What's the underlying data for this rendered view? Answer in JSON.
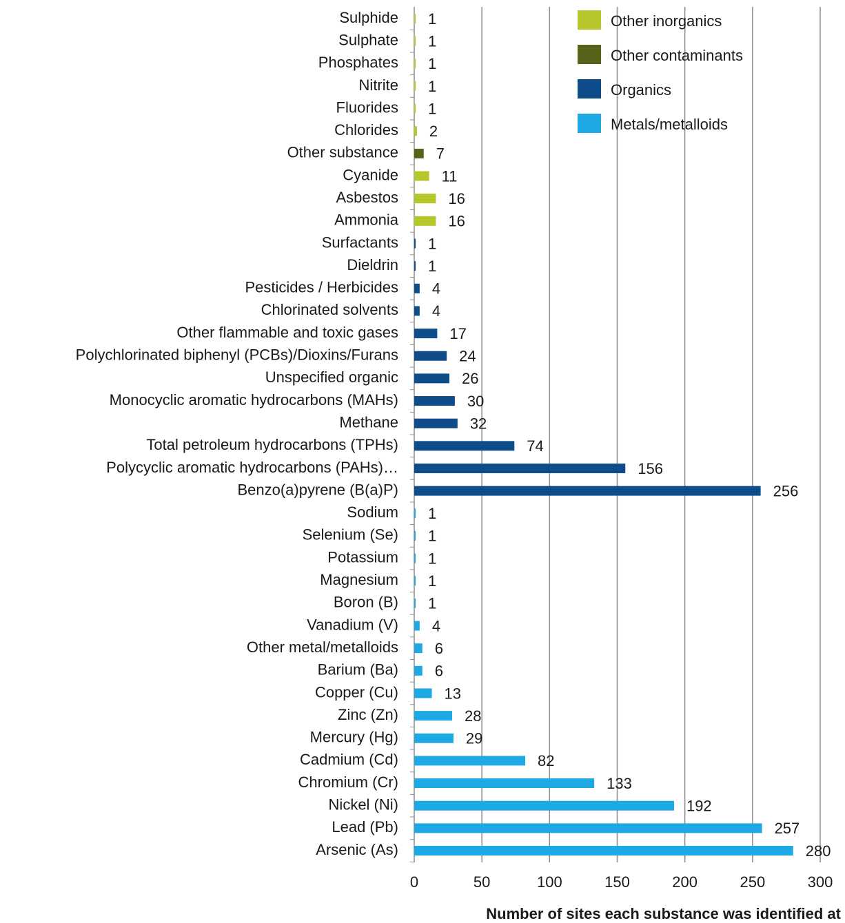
{
  "chart_data": {
    "type": "barh",
    "x_label": "Number of sites each substance was identified at",
    "categories": [
      "Sulphide",
      "Sulphate",
      "Phosphates",
      "Nitrite",
      "Fluorides",
      "Chlorides",
      "Other substance",
      "Cyanide",
      "Asbestos",
      "Ammonia",
      "Surfactants",
      "Dieldrin",
      "Pesticides / Herbicides",
      "Chlorinated solvents",
      "Other flammable and toxic gases",
      "Polychlorinated biphenyl (PCBs)/Dioxins/Furans",
      "Unspecified organic",
      "Monocyclic aromatic hydrocarbons (MAHs)",
      "Methane",
      "Total petroleum hydrocarbons (TPHs)",
      "Polycyclic aromatic hydrocarbons (PAHs)…",
      "Benzo(a)pyrene (B(a)P)",
      "Sodium",
      "Selenium (Se)",
      "Potassium",
      "Magnesium",
      "Boron (B)",
      "Vanadium (V)",
      "Other metal/metalloids",
      "Barium (Ba)",
      "Copper (Cu)",
      "Zinc (Zn)",
      "Mercury (Hg)",
      "Cadmium (Cd)",
      "Chromium (Cr)",
      "Nickel (Ni)",
      "Lead (Pb)",
      "Arsenic (As)"
    ],
    "series": [
      {
        "name": "Other inorganics",
        "color": "#b7c72b",
        "values": [
          1,
          1,
          1,
          1,
          1,
          2,
          null,
          11,
          16,
          16,
          null,
          null,
          null,
          null,
          null,
          null,
          null,
          null,
          null,
          null,
          null,
          null,
          null,
          null,
          null,
          null,
          null,
          null,
          null,
          null,
          null,
          null,
          null,
          null,
          null,
          null,
          null,
          null
        ]
      },
      {
        "name": "Other contaminants",
        "color": "#566319",
        "values": [
          null,
          null,
          null,
          null,
          null,
          null,
          7,
          null,
          null,
          null,
          null,
          null,
          null,
          null,
          null,
          null,
          null,
          null,
          null,
          null,
          null,
          null,
          null,
          null,
          null,
          null,
          null,
          null,
          null,
          null,
          null,
          null,
          null,
          null,
          null,
          null,
          null,
          null
        ]
      },
      {
        "name": "Organics",
        "color": "#0e4d8a",
        "values": [
          null,
          null,
          null,
          null,
          null,
          null,
          null,
          null,
          null,
          null,
          1,
          1,
          4,
          4,
          17,
          24,
          26,
          30,
          32,
          74,
          156,
          256,
          null,
          null,
          null,
          null,
          null,
          null,
          null,
          null,
          null,
          null,
          null,
          null,
          null,
          null,
          null,
          null
        ]
      },
      {
        "name": "Metals/metalloids",
        "color": "#1ea8e4",
        "values": [
          null,
          null,
          null,
          null,
          null,
          null,
          null,
          null,
          null,
          null,
          null,
          null,
          null,
          null,
          null,
          null,
          null,
          null,
          null,
          null,
          null,
          null,
          1,
          1,
          1,
          1,
          1,
          4,
          6,
          6,
          13,
          28,
          29,
          82,
          133,
          192,
          257,
          280
        ]
      }
    ],
    "xlim": [
      0,
      300
    ],
    "xticks": [
      0,
      50,
      100,
      150,
      200,
      250,
      300
    ],
    "grid": true,
    "legend": "upper right"
  }
}
